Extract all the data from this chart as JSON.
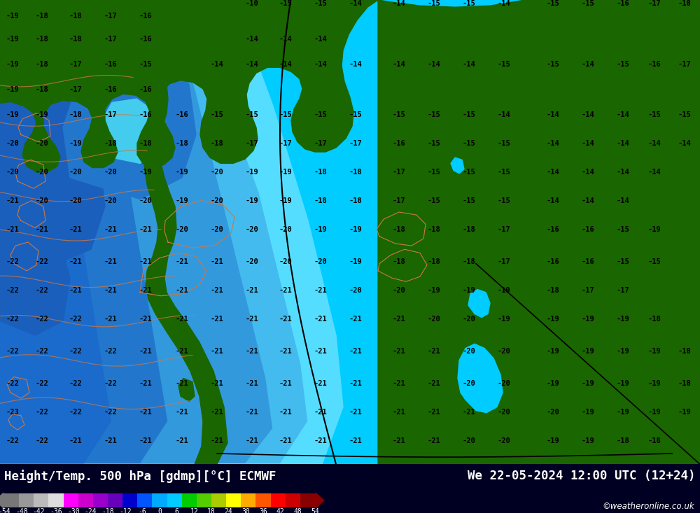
{
  "title_left": "Height/Temp. 500 hPa [gdmp][°C] ECMWF",
  "title_right": "We 22-05-2024 12:00 UTC (12+24)",
  "credit": "©weatheronline.co.uk",
  "fig_width": 10.0,
  "fig_height": 7.33,
  "bg_color": "#00ccff",
  "land_color": "#1a6600",
  "ocean_color": "#00ccff",
  "deep_blue1": "#1a6bcc",
  "deep_blue2": "#3399dd",
  "light_blue": "#66bbee",
  "mid_cyan": "#44ddff",
  "bottom_bg": "#000022",
  "label_color": "#000000",
  "seg_colors": [
    "#777777",
    "#999999",
    "#bbbbbb",
    "#dddddd",
    "#ff00ff",
    "#cc00cc",
    "#9900cc",
    "#6600bb",
    "#0000cc",
    "#0055ff",
    "#00aaff",
    "#00ccff",
    "#00cc00",
    "#55cc00",
    "#aacc00",
    "#ffff00",
    "#ffaa00",
    "#ff5500",
    "#ff0000",
    "#cc0000",
    "#880000"
  ],
  "tick_labels": [
    "-54",
    "-48",
    "-42",
    "-36",
    "-30",
    "-24",
    "-18",
    "-12",
    "-6",
    "0",
    "6",
    "12",
    "18",
    "24",
    "30",
    "36",
    "42",
    "48",
    "54"
  ],
  "map_labels": [
    [
      18,
      22,
      "-19"
    ],
    [
      60,
      22,
      "-18"
    ],
    [
      108,
      22,
      "-18"
    ],
    [
      158,
      22,
      "-17"
    ],
    [
      208,
      22,
      "-16"
    ],
    [
      18,
      55,
      "-19"
    ],
    [
      60,
      55,
      "-18"
    ],
    [
      108,
      55,
      "-18"
    ],
    [
      158,
      55,
      "-17"
    ],
    [
      208,
      55,
      "-16"
    ],
    [
      360,
      5,
      "-10"
    ],
    [
      408,
      5,
      "-15"
    ],
    [
      458,
      5,
      "-15"
    ],
    [
      508,
      5,
      "-14"
    ],
    [
      570,
      5,
      "-14"
    ],
    [
      620,
      5,
      "-15"
    ],
    [
      670,
      5,
      "-15"
    ],
    [
      720,
      5,
      "-14"
    ],
    [
      790,
      5,
      "-15"
    ],
    [
      840,
      5,
      "-15"
    ],
    [
      890,
      5,
      "-16"
    ],
    [
      935,
      5,
      "-17"
    ],
    [
      978,
      5,
      "-18"
    ],
    [
      18,
      90,
      "-19"
    ],
    [
      60,
      90,
      "-18"
    ],
    [
      108,
      90,
      "-17"
    ],
    [
      158,
      90,
      "-16"
    ],
    [
      208,
      90,
      "-15"
    ],
    [
      18,
      125,
      "-19"
    ],
    [
      60,
      125,
      "-18"
    ],
    [
      108,
      125,
      "-17"
    ],
    [
      158,
      125,
      "-16"
    ],
    [
      208,
      125,
      "-16"
    ],
    [
      310,
      90,
      "-14"
    ],
    [
      360,
      90,
      "-14"
    ],
    [
      408,
      90,
      "-14"
    ],
    [
      458,
      90,
      "-14"
    ],
    [
      508,
      90,
      "-14"
    ],
    [
      570,
      90,
      "-14"
    ],
    [
      620,
      90,
      "-14"
    ],
    [
      670,
      90,
      "-14"
    ],
    [
      720,
      90,
      "-15"
    ],
    [
      790,
      90,
      "-15"
    ],
    [
      840,
      90,
      "-14"
    ],
    [
      890,
      90,
      "-15"
    ],
    [
      935,
      90,
      "-16"
    ],
    [
      978,
      90,
      "-17"
    ],
    [
      360,
      55,
      "-14"
    ],
    [
      408,
      55,
      "-14"
    ],
    [
      458,
      55,
      "-14"
    ],
    [
      18,
      160,
      "-19"
    ],
    [
      60,
      160,
      "-19"
    ],
    [
      108,
      160,
      "-18"
    ],
    [
      158,
      160,
      "-17"
    ],
    [
      208,
      160,
      "-16"
    ],
    [
      260,
      160,
      "-16"
    ],
    [
      310,
      160,
      "-15"
    ],
    [
      360,
      160,
      "-15"
    ],
    [
      408,
      160,
      "-15"
    ],
    [
      458,
      160,
      "-15"
    ],
    [
      508,
      160,
      "-15"
    ],
    [
      570,
      160,
      "-15"
    ],
    [
      620,
      160,
      "-15"
    ],
    [
      670,
      160,
      "-15"
    ],
    [
      720,
      160,
      "-14"
    ],
    [
      790,
      160,
      "-14"
    ],
    [
      840,
      160,
      "-14"
    ],
    [
      890,
      160,
      "-14"
    ],
    [
      935,
      160,
      "-15"
    ],
    [
      978,
      160,
      "-15"
    ],
    [
      18,
      200,
      "-20"
    ],
    [
      60,
      200,
      "-20"
    ],
    [
      108,
      200,
      "-19"
    ],
    [
      158,
      200,
      "-18"
    ],
    [
      208,
      200,
      "-18"
    ],
    [
      260,
      200,
      "-18"
    ],
    [
      310,
      200,
      "-18"
    ],
    [
      360,
      200,
      "-17"
    ],
    [
      408,
      200,
      "-17"
    ],
    [
      458,
      200,
      "-17"
    ],
    [
      508,
      200,
      "-17"
    ],
    [
      570,
      200,
      "-16"
    ],
    [
      620,
      200,
      "-15"
    ],
    [
      670,
      200,
      "-15"
    ],
    [
      720,
      200,
      "-15"
    ],
    [
      790,
      200,
      "-14"
    ],
    [
      840,
      200,
      "-14"
    ],
    [
      890,
      200,
      "-14"
    ],
    [
      935,
      200,
      "-14"
    ],
    [
      978,
      200,
      "-14"
    ],
    [
      18,
      240,
      "-20"
    ],
    [
      60,
      240,
      "-20"
    ],
    [
      108,
      240,
      "-20"
    ],
    [
      158,
      240,
      "-20"
    ],
    [
      208,
      240,
      "-19"
    ],
    [
      260,
      240,
      "-19"
    ],
    [
      310,
      240,
      "-20"
    ],
    [
      360,
      240,
      "-19"
    ],
    [
      408,
      240,
      "-19"
    ],
    [
      458,
      240,
      "-18"
    ],
    [
      508,
      240,
      "-18"
    ],
    [
      570,
      240,
      "-17"
    ],
    [
      620,
      240,
      "-15"
    ],
    [
      670,
      240,
      "-15"
    ],
    [
      720,
      240,
      "-15"
    ],
    [
      790,
      240,
      "-14"
    ],
    [
      840,
      240,
      "-14"
    ],
    [
      890,
      240,
      "-14"
    ],
    [
      935,
      240,
      "-14"
    ],
    [
      18,
      280,
      "-21"
    ],
    [
      60,
      280,
      "-20"
    ],
    [
      108,
      280,
      "-20"
    ],
    [
      158,
      280,
      "-20"
    ],
    [
      208,
      280,
      "-20"
    ],
    [
      260,
      280,
      "-19"
    ],
    [
      310,
      280,
      "-20"
    ],
    [
      360,
      280,
      "-19"
    ],
    [
      408,
      280,
      "-19"
    ],
    [
      458,
      280,
      "-18"
    ],
    [
      508,
      280,
      "-18"
    ],
    [
      570,
      280,
      "-17"
    ],
    [
      620,
      280,
      "-15"
    ],
    [
      670,
      280,
      "-15"
    ],
    [
      720,
      280,
      "-15"
    ],
    [
      790,
      280,
      "-14"
    ],
    [
      840,
      280,
      "-14"
    ],
    [
      890,
      280,
      "-14"
    ],
    [
      18,
      320,
      "-21"
    ],
    [
      60,
      320,
      "-21"
    ],
    [
      108,
      320,
      "-21"
    ],
    [
      158,
      320,
      "-21"
    ],
    [
      208,
      320,
      "-21"
    ],
    [
      260,
      320,
      "-20"
    ],
    [
      310,
      320,
      "-20"
    ],
    [
      360,
      320,
      "-20"
    ],
    [
      408,
      320,
      "-20"
    ],
    [
      458,
      320,
      "-19"
    ],
    [
      508,
      320,
      "-19"
    ],
    [
      570,
      320,
      "-18"
    ],
    [
      620,
      320,
      "-18"
    ],
    [
      670,
      320,
      "-18"
    ],
    [
      720,
      320,
      "-17"
    ],
    [
      790,
      320,
      "-16"
    ],
    [
      840,
      320,
      "-16"
    ],
    [
      890,
      320,
      "-15"
    ],
    [
      935,
      320,
      "-19"
    ],
    [
      18,
      365,
      "-22"
    ],
    [
      60,
      365,
      "-22"
    ],
    [
      108,
      365,
      "-21"
    ],
    [
      158,
      365,
      "-21"
    ],
    [
      208,
      365,
      "-21"
    ],
    [
      260,
      365,
      "-21"
    ],
    [
      310,
      365,
      "-21"
    ],
    [
      360,
      365,
      "-20"
    ],
    [
      408,
      365,
      "-20"
    ],
    [
      458,
      365,
      "-20"
    ],
    [
      508,
      365,
      "-19"
    ],
    [
      570,
      365,
      "-18"
    ],
    [
      620,
      365,
      "-18"
    ],
    [
      670,
      365,
      "-18"
    ],
    [
      720,
      365,
      "-17"
    ],
    [
      790,
      365,
      "-16"
    ],
    [
      840,
      365,
      "-16"
    ],
    [
      890,
      365,
      "-15"
    ],
    [
      935,
      365,
      "-15"
    ],
    [
      18,
      405,
      "-22"
    ],
    [
      60,
      405,
      "-22"
    ],
    [
      108,
      405,
      "-21"
    ],
    [
      158,
      405,
      "-21"
    ],
    [
      208,
      405,
      "-21"
    ],
    [
      260,
      405,
      "-21"
    ],
    [
      310,
      405,
      "-21"
    ],
    [
      360,
      405,
      "-21"
    ],
    [
      408,
      405,
      "-21"
    ],
    [
      458,
      405,
      "-21"
    ],
    [
      508,
      405,
      "-20"
    ],
    [
      570,
      405,
      "-20"
    ],
    [
      620,
      405,
      "-19"
    ],
    [
      670,
      405,
      "-19"
    ],
    [
      720,
      405,
      "-19"
    ],
    [
      790,
      405,
      "-18"
    ],
    [
      840,
      405,
      "-17"
    ],
    [
      890,
      405,
      "-17"
    ],
    [
      18,
      445,
      "-22"
    ],
    [
      60,
      445,
      "-22"
    ],
    [
      108,
      445,
      "-22"
    ],
    [
      158,
      445,
      "-21"
    ],
    [
      208,
      445,
      "-21"
    ],
    [
      260,
      445,
      "-21"
    ],
    [
      310,
      445,
      "-21"
    ],
    [
      360,
      445,
      "-21"
    ],
    [
      408,
      445,
      "-21"
    ],
    [
      458,
      445,
      "-21"
    ],
    [
      508,
      445,
      "-21"
    ],
    [
      570,
      445,
      "-21"
    ],
    [
      620,
      445,
      "-20"
    ],
    [
      670,
      445,
      "-20"
    ],
    [
      720,
      445,
      "-19"
    ],
    [
      790,
      445,
      "-19"
    ],
    [
      840,
      445,
      "-19"
    ],
    [
      890,
      445,
      "-19"
    ],
    [
      935,
      445,
      "-18"
    ],
    [
      18,
      490,
      "-22"
    ],
    [
      60,
      490,
      "-22"
    ],
    [
      108,
      490,
      "-22"
    ],
    [
      158,
      490,
      "-22"
    ],
    [
      208,
      490,
      "-21"
    ],
    [
      260,
      490,
      "-21"
    ],
    [
      310,
      490,
      "-21"
    ],
    [
      360,
      490,
      "-21"
    ],
    [
      408,
      490,
      "-21"
    ],
    [
      458,
      490,
      "-21"
    ],
    [
      508,
      490,
      "-21"
    ],
    [
      570,
      490,
      "-21"
    ],
    [
      620,
      490,
      "-21"
    ],
    [
      670,
      490,
      "-20"
    ],
    [
      720,
      490,
      "-20"
    ],
    [
      790,
      490,
      "-19"
    ],
    [
      840,
      490,
      "-19"
    ],
    [
      890,
      490,
      "-19"
    ],
    [
      935,
      490,
      "-19"
    ],
    [
      978,
      490,
      "-18"
    ],
    [
      18,
      535,
      "-22"
    ],
    [
      60,
      535,
      "-22"
    ],
    [
      108,
      535,
      "-22"
    ],
    [
      158,
      535,
      "-22"
    ],
    [
      208,
      535,
      "-21"
    ],
    [
      260,
      535,
      "-21"
    ],
    [
      310,
      535,
      "-21"
    ],
    [
      360,
      535,
      "-21"
    ],
    [
      408,
      535,
      "-21"
    ],
    [
      458,
      535,
      "-21"
    ],
    [
      508,
      535,
      "-21"
    ],
    [
      570,
      535,
      "-21"
    ],
    [
      620,
      535,
      "-21"
    ],
    [
      670,
      535,
      "-20"
    ],
    [
      720,
      535,
      "-20"
    ],
    [
      790,
      535,
      "-19"
    ],
    [
      840,
      535,
      "-19"
    ],
    [
      890,
      535,
      "-19"
    ],
    [
      935,
      535,
      "-19"
    ],
    [
      978,
      535,
      "-18"
    ],
    [
      18,
      575,
      "-23"
    ],
    [
      60,
      575,
      "-22"
    ],
    [
      108,
      575,
      "-22"
    ],
    [
      158,
      575,
      "-22"
    ],
    [
      208,
      575,
      "-21"
    ],
    [
      260,
      575,
      "-21"
    ],
    [
      310,
      575,
      "-21"
    ],
    [
      360,
      575,
      "-21"
    ],
    [
      408,
      575,
      "-21"
    ],
    [
      458,
      575,
      "-21"
    ],
    [
      508,
      575,
      "-21"
    ],
    [
      570,
      575,
      "-21"
    ],
    [
      620,
      575,
      "-21"
    ],
    [
      670,
      575,
      "-21"
    ],
    [
      720,
      575,
      "-20"
    ],
    [
      790,
      575,
      "-20"
    ],
    [
      840,
      575,
      "-19"
    ],
    [
      890,
      575,
      "-19"
    ],
    [
      935,
      575,
      "-19"
    ],
    [
      978,
      575,
      "-19"
    ],
    [
      18,
      615,
      "-22"
    ],
    [
      60,
      615,
      "-22"
    ],
    [
      108,
      615,
      "-21"
    ],
    [
      158,
      615,
      "-21"
    ],
    [
      208,
      615,
      "-21"
    ],
    [
      260,
      615,
      "-21"
    ],
    [
      310,
      615,
      "-21"
    ],
    [
      360,
      615,
      "-21"
    ],
    [
      408,
      615,
      "-21"
    ],
    [
      458,
      615,
      "-21"
    ],
    [
      508,
      615,
      "-21"
    ],
    [
      570,
      615,
      "-21"
    ],
    [
      620,
      615,
      "-21"
    ],
    [
      670,
      615,
      "-20"
    ],
    [
      720,
      615,
      "-20"
    ],
    [
      790,
      615,
      "-19"
    ],
    [
      840,
      615,
      "-19"
    ],
    [
      890,
      615,
      "-18"
    ],
    [
      935,
      615,
      "-18"
    ]
  ]
}
